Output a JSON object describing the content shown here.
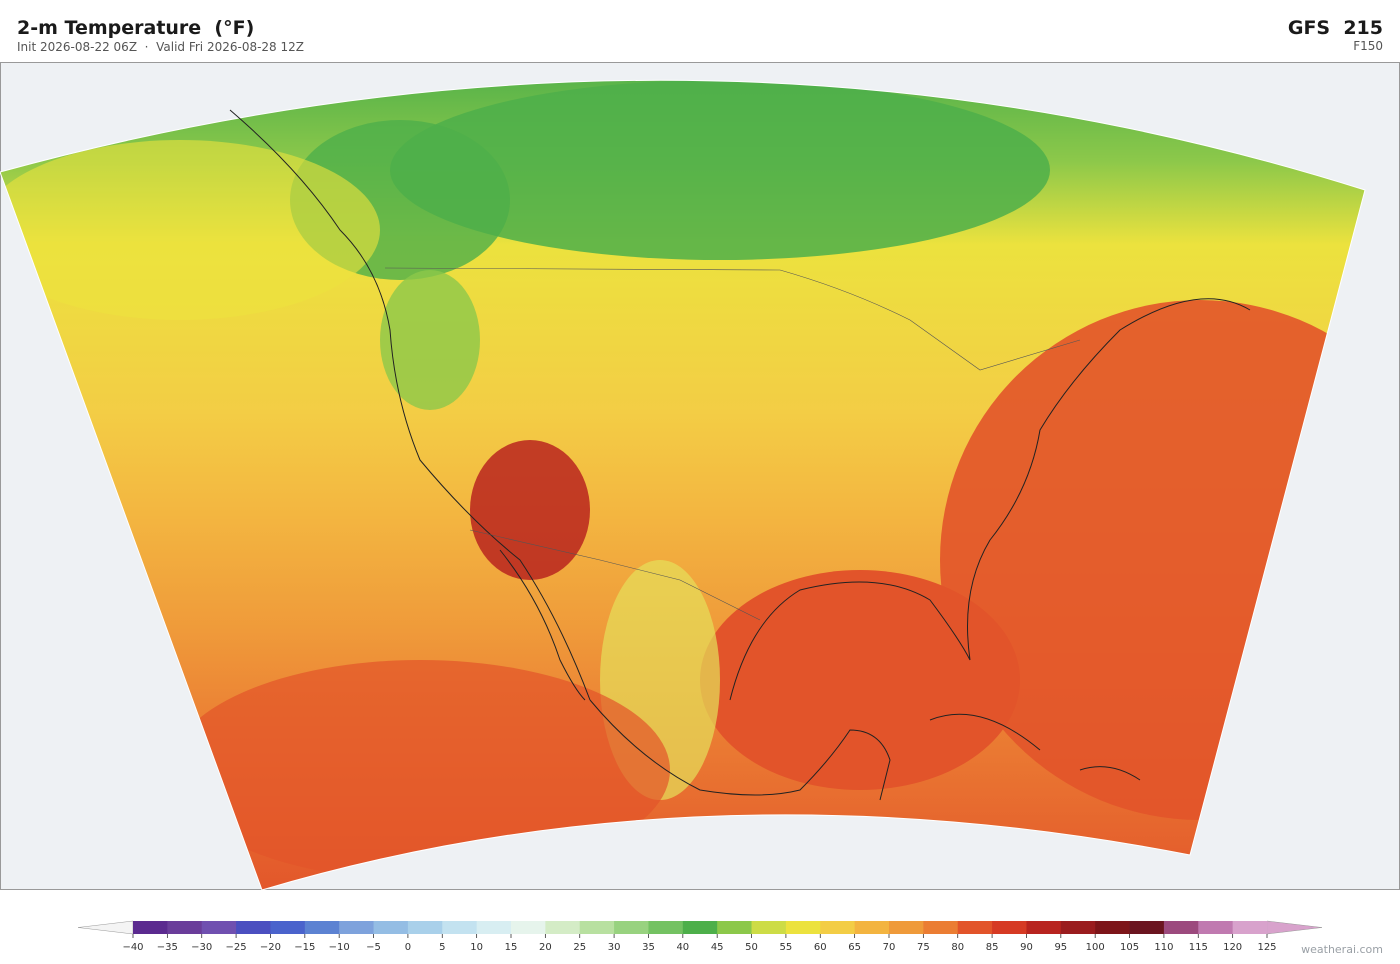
{
  "header": {
    "title": "2-m Temperature  (°F)",
    "subtitle": "Init 2026-08-22 06Z  ·  Valid Fri 2026-08-28 12Z",
    "model": "GFS  215",
    "forecast_hour": "F150"
  },
  "colorbar": {
    "ticks": [
      {
        "value": -40,
        "label": "−40"
      },
      {
        "value": -35,
        "label": "−35"
      },
      {
        "value": -30,
        "label": "−30"
      },
      {
        "value": -25,
        "label": "−25"
      },
      {
        "value": -20,
        "label": "−20"
      },
      {
        "value": -15,
        "label": "−15"
      },
      {
        "value": -10,
        "label": "−10"
      },
      {
        "value": -5,
        "label": "−5"
      },
      0,
      5,
      10,
      15,
      20,
      25,
      30,
      35,
      40,
      45,
      50,
      55,
      60,
      65,
      70,
      75,
      80,
      85,
      90,
      95,
      100,
      105,
      110,
      115,
      120,
      125
    ],
    "colors": [
      "#5b2a8f",
      "#6a3d9a",
      "#7050b0",
      "#4b4fc0",
      "#4a63cc",
      "#5c82d2",
      "#7ea2dc",
      "#94bde4",
      "#a9d0ea",
      "#c3e2f0",
      "#d8eef2",
      "#e6f4ec",
      "#d4ecc6",
      "#b8e0a0",
      "#98d27f",
      "#74c262",
      "#4daf4a",
      "#8cc84a",
      "#cddc46",
      "#ece23e",
      "#f3cd45",
      "#f3b440",
      "#ef9a3a",
      "#eb7d33",
      "#e2542a",
      "#d63a24",
      "#b8241f",
      "#9a1c1e",
      "#7d1519",
      "#6b1520",
      "#9c4a7e",
      "#c07ab0",
      "#d8a2cc"
    ],
    "under_color": "#f4f4f4",
    "over_color": "#d8a2cc"
  },
  "watermark": "weatherai.com"
}
